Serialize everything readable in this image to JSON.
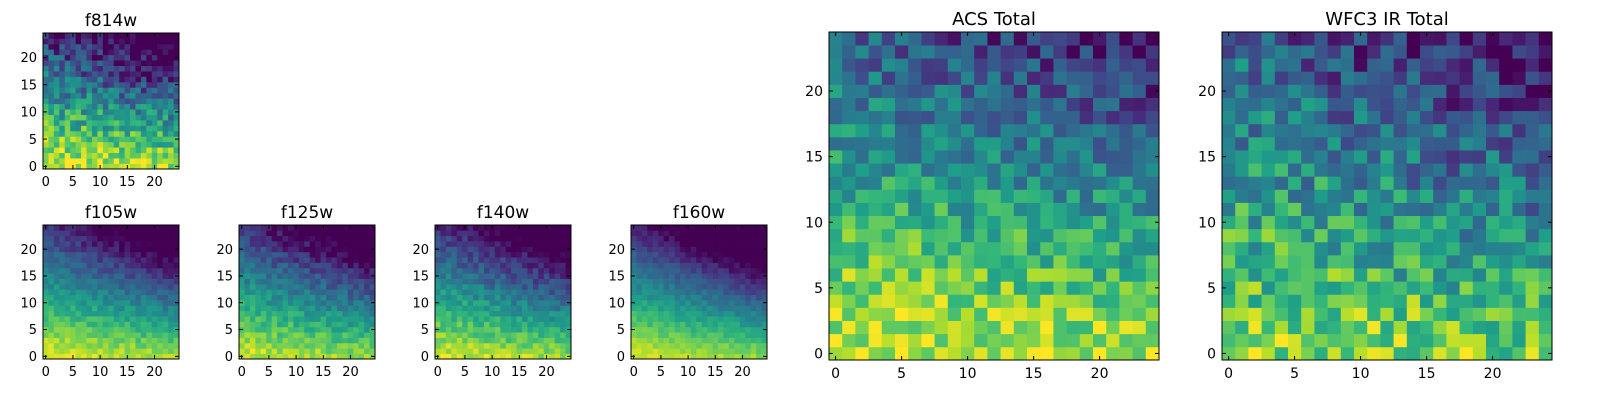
{
  "figure": {
    "background": "#ffffff"
  },
  "colormap": {
    "name": "viridis",
    "stops": [
      "#440154",
      "#482878",
      "#3e4a89",
      "#31688e",
      "#26828e",
      "#1f9e89",
      "#35b779",
      "#6ece58",
      "#b5de2b",
      "#fde725"
    ]
  },
  "chart_data": [
    {
      "id": "f814w",
      "type": "heatmap",
      "title": "f814w",
      "xlim": [
        0,
        24
      ],
      "ylim": [
        0,
        24
      ],
      "grid_size": 25,
      "xticks": [
        0,
        5,
        10,
        15,
        20
      ],
      "yticks": [
        0,
        5,
        10,
        15,
        20
      ],
      "xlabel": "",
      "ylabel": "",
      "gradient": {
        "base": 0.97,
        "slope": 0.85,
        "right_fall": 0.28,
        "noise": 0.2,
        "seed": 11
      }
    },
    {
      "id": "f105w",
      "type": "heatmap",
      "title": "f105w",
      "xlim": [
        0,
        24
      ],
      "ylim": [
        0,
        24
      ],
      "grid_size": 25,
      "xticks": [
        0,
        5,
        10,
        15,
        20
      ],
      "yticks": [
        0,
        5,
        10,
        15,
        20
      ],
      "xlabel": "",
      "ylabel": "",
      "gradient": {
        "base": 0.96,
        "slope": 0.8,
        "right_fall": 0.35,
        "noise": 0.08,
        "seed": 23
      }
    },
    {
      "id": "f125w",
      "type": "heatmap",
      "title": "f125w",
      "xlim": [
        0,
        24
      ],
      "ylim": [
        0,
        24
      ],
      "grid_size": 25,
      "xticks": [
        0,
        5,
        10,
        15,
        20
      ],
      "yticks": [
        0,
        5,
        10,
        15,
        20
      ],
      "xlabel": "",
      "ylabel": "",
      "gradient": {
        "base": 0.93,
        "slope": 0.78,
        "right_fall": 0.35,
        "noise": 0.1,
        "seed": 37
      }
    },
    {
      "id": "f140w",
      "type": "heatmap",
      "title": "f140w",
      "xlim": [
        0,
        24
      ],
      "ylim": [
        0,
        24
      ],
      "grid_size": 25,
      "xticks": [
        0,
        5,
        10,
        15,
        20
      ],
      "yticks": [
        0,
        5,
        10,
        15,
        20
      ],
      "xlabel": "",
      "ylabel": "",
      "gradient": {
        "base": 0.94,
        "slope": 0.8,
        "right_fall": 0.35,
        "noise": 0.1,
        "seed": 41
      }
    },
    {
      "id": "f160w",
      "type": "heatmap",
      "title": "f160w",
      "xlim": [
        0,
        24
      ],
      "ylim": [
        0,
        24
      ],
      "grid_size": 25,
      "xticks": [
        0,
        5,
        10,
        15,
        20
      ],
      "yticks": [
        0,
        5,
        10,
        15,
        20
      ],
      "xlabel": "",
      "ylabel": "",
      "gradient": {
        "base": 0.95,
        "slope": 0.85,
        "right_fall": 0.4,
        "noise": 0.06,
        "seed": 53
      }
    },
    {
      "id": "acs-total",
      "type": "heatmap",
      "title": "ACS Total",
      "xlim": [
        0,
        24
      ],
      "ylim": [
        0,
        24
      ],
      "grid_size": 25,
      "xticks": [
        0,
        5,
        10,
        15,
        20
      ],
      "yticks": [
        0,
        5,
        10,
        15,
        20
      ],
      "xlabel": "",
      "ylabel": "",
      "gradient": {
        "base": 0.94,
        "slope": 0.62,
        "right_fall": 0.2,
        "noise": 0.18,
        "seed": 67
      }
    },
    {
      "id": "wfc3-ir-total",
      "type": "heatmap",
      "title": "WFC3 IR Total",
      "xlim": [
        0,
        24
      ],
      "ylim": [
        0,
        24
      ],
      "grid_size": 25,
      "xticks": [
        0,
        5,
        10,
        15,
        20
      ],
      "yticks": [
        0,
        5,
        10,
        15,
        20
      ],
      "xlabel": "",
      "ylabel": "",
      "gradient": {
        "base": 0.86,
        "slope": 0.55,
        "right_fall": 0.25,
        "noise": 0.22,
        "seed": 79
      }
    }
  ]
}
